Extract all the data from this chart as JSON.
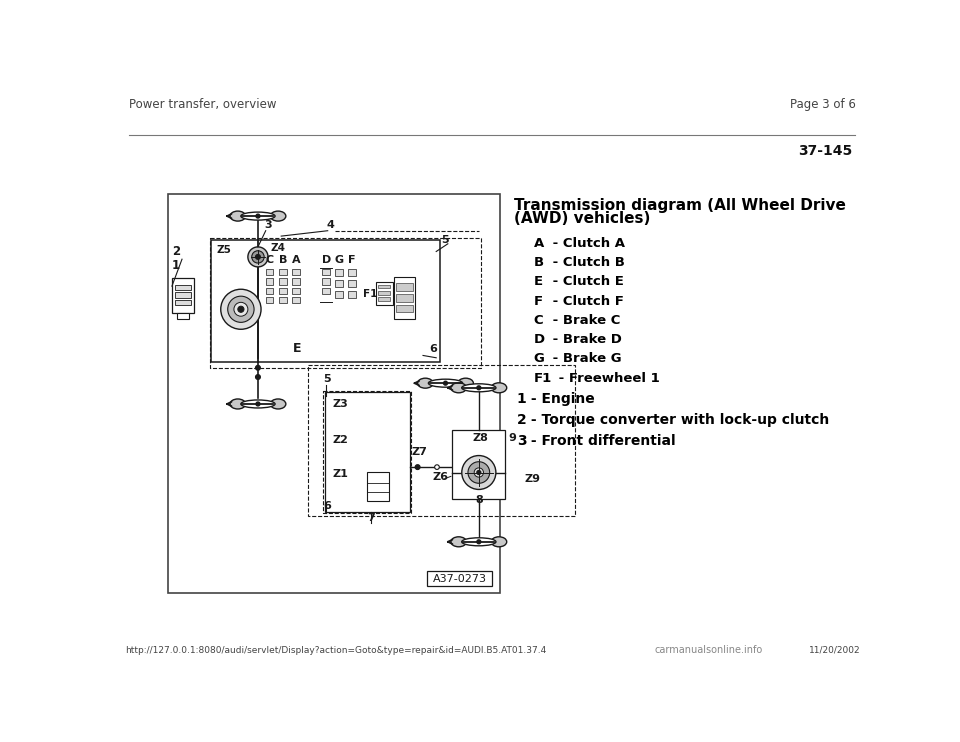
{
  "bg_color": "#ffffff",
  "header_text": "Power transfer, overview",
  "page_text": "Page 3 of 6",
  "page_num": "37-145",
  "title_line1": "Transmission diagram (All Wheel Drive",
  "title_line2": "(AWD) vehicles)",
  "legend_items_indented": [
    [
      "A",
      " - Clutch A"
    ],
    [
      "B",
      " - Clutch B"
    ],
    [
      "E",
      " - Clutch E"
    ],
    [
      "F",
      " - Clutch F"
    ],
    [
      "C",
      " - Brake C"
    ],
    [
      "D",
      " - Brake D"
    ],
    [
      "G",
      " - Brake G"
    ],
    [
      "F1",
      " - Freewheel 1"
    ]
  ],
  "legend_items_normal": [
    [
      "1",
      " - Engine"
    ],
    [
      "2",
      " - Torque converter with lock-up clutch"
    ],
    [
      "3",
      " - Front differential"
    ]
  ],
  "footer_url": "http://127.0.0.1:8080/audi/servlet/Display?action=Goto&type=repair&id=AUDI.B5.AT01.37.4",
  "footer_date": "11/20/2002",
  "footer_brand": "carmanualsonline.info",
  "diagram_label": "A37-0273",
  "line_color": "#1a1a1a",
  "gray_light": "#c8c8c8",
  "gray_mid": "#999999",
  "gray_dark": "#666666"
}
